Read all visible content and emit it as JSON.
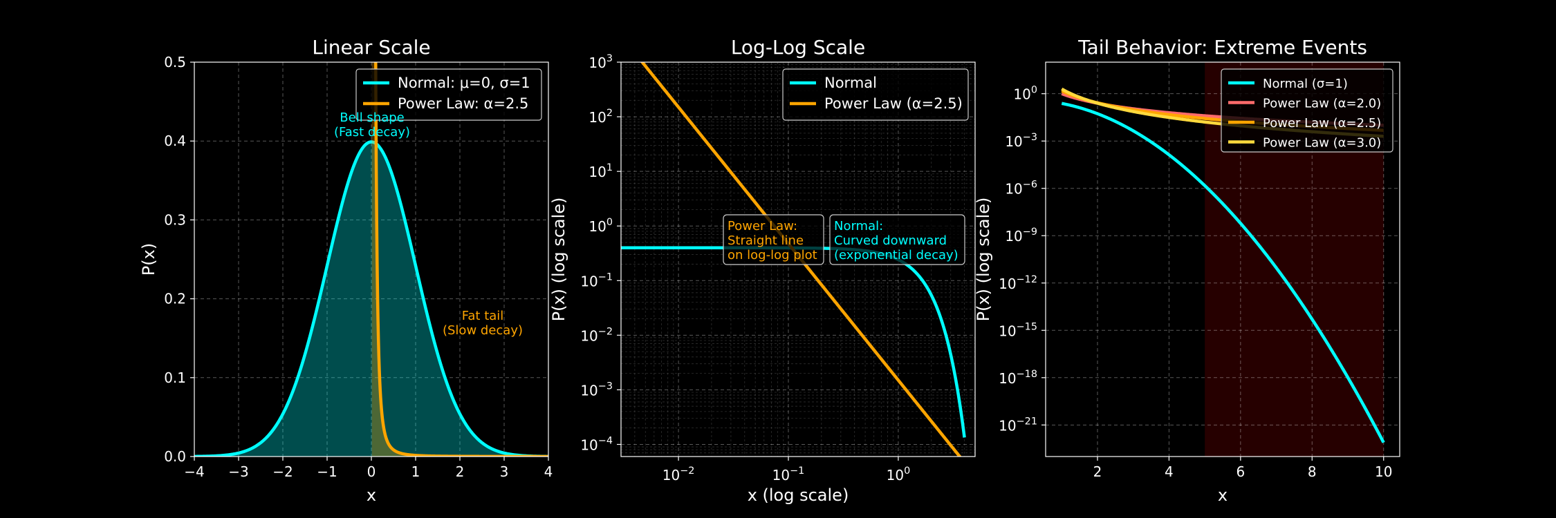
{
  "figure": {
    "background": "#000000"
  },
  "chart_data": [
    {
      "type": "line",
      "title": "Linear Scale",
      "xlabel": "x",
      "ylabel": "P(x)",
      "xscale": "linear",
      "yscale": "linear",
      "xlim": [
        -4,
        4
      ],
      "ylim": [
        0,
        0.5
      ],
      "xticks": [
        -4,
        -3,
        -2,
        -1,
        0,
        1,
        2,
        3,
        4
      ],
      "xtick_labels": [
        "−4",
        "−3",
        "−2",
        "−1",
        "0",
        "1",
        "2",
        "3",
        "4"
      ],
      "yticks": [
        0,
        0.1,
        0.2,
        0.3,
        0.4,
        0.5
      ],
      "ytick_labels": [
        "0.0",
        "0.1",
        "0.2",
        "0.3",
        "0.4",
        "0.5"
      ],
      "grid": true,
      "legend_position": "top-right",
      "series": [
        {
          "name": "Normal: μ=0, σ=1",
          "color": "#00ffff",
          "function": "normal_pdf",
          "params": {
            "mu": 0,
            "sigma": 1
          },
          "x_range": [
            -4,
            4
          ],
          "fill": true
        },
        {
          "name": "Power Law: α=2.5",
          "color": "#ffa500",
          "function": "power_law_pdf",
          "params": {
            "alpha": 2.5,
            "xmin": 0.01
          },
          "x_range": [
            0.01,
            4
          ],
          "fill": true
        }
      ],
      "annotations": [
        {
          "lines": [
            "Bell shape",
            "(Fast decay)"
          ],
          "color": "#00ffff",
          "x": 0,
          "y": 0.42
        },
        {
          "lines": [
            "Fat tail",
            "(Slow decay)"
          ],
          "color": "#ffa500",
          "x": 2.5,
          "y": 0.16
        }
      ]
    },
    {
      "type": "line",
      "title": "Log-Log Scale",
      "xlabel": "x (log scale)",
      "ylabel": "P(x) (log scale)",
      "xscale": "log",
      "yscale": "log",
      "xlim": [
        0.003,
        5
      ],
      "ylim": [
        6e-05,
        1000
      ],
      "xticks": [
        0.01,
        0.1,
        1
      ],
      "xtick_labels": [
        [
          "10",
          "−2"
        ],
        [
          "10",
          "−1"
        ],
        [
          "10",
          "0"
        ]
      ],
      "yticks": [
        0.0001,
        0.001,
        0.01,
        0.1,
        1,
        10,
        100,
        1000
      ],
      "ytick_labels": [
        [
          "10",
          "−4"
        ],
        [
          "10",
          "−3"
        ],
        [
          "10",
          "−2"
        ],
        [
          "10",
          "−1"
        ],
        [
          "10",
          "0"
        ],
        [
          "10",
          "1"
        ],
        [
          "10",
          "2"
        ],
        [
          "10",
          "3"
        ]
      ],
      "grid": true,
      "minor_grid": true,
      "legend_position": "top-right",
      "series": [
        {
          "name": "Normal",
          "color": "#00ffff",
          "function": "normal_pdf",
          "params": {
            "mu": 0,
            "sigma": 1
          },
          "x_range": [
            0.003,
            4
          ]
        },
        {
          "name": "Power Law (α=2.5)",
          "color": "#ffa500",
          "function": "power_law_pdf",
          "params": {
            "alpha": 2.5,
            "xmin": 0.01
          },
          "x_range": [
            0.003,
            4
          ]
        }
      ],
      "annotations": [
        {
          "lines": [
            "Power Law:",
            "Straight line",
            "on log-log plot"
          ],
          "color": "#ffa500",
          "boxed": true
        },
        {
          "lines": [
            "Normal:",
            "Curved downward",
            "(exponential decay)"
          ],
          "color": "#00ffff",
          "boxed": true
        }
      ]
    },
    {
      "type": "line",
      "title": "Tail Behavior: Extreme Events",
      "xlabel": "x",
      "ylabel": "P(x) (log scale)",
      "xscale": "linear",
      "yscale": "log",
      "xlim": [
        0.55,
        10.45
      ],
      "ylim": [
        1e-23,
        100.0
      ],
      "xticks": [
        2,
        4,
        6,
        8,
        10
      ],
      "xtick_labels": [
        "2",
        "4",
        "6",
        "8",
        "10"
      ],
      "yticks": [
        1e-21,
        1e-18,
        1e-15,
        1e-12,
        1e-09,
        1e-06,
        0.001,
        1
      ],
      "ytick_labels": [
        [
          "10",
          "−21"
        ],
        [
          "10",
          "−18"
        ],
        [
          "10",
          "−15"
        ],
        [
          "10",
          "−12"
        ],
        [
          "10",
          "−9"
        ],
        [
          "10",
          "−6"
        ],
        [
          "10",
          "−3"
        ],
        [
          "10",
          "0"
        ]
      ],
      "grid": true,
      "legend_position": "top-right",
      "highlight_region": {
        "x_range": [
          5,
          10
        ],
        "color": "#ff0000"
      },
      "series": [
        {
          "name": "Normal (σ=1)",
          "color": "#00ffff",
          "function": "normal_pdf",
          "params": {
            "mu": 0,
            "sigma": 1
          },
          "x_range": [
            1,
            10
          ]
        },
        {
          "name": "Power Law (α=2.0)",
          "color": "#ff6b6b",
          "function": "power_law_pdf",
          "params": {
            "alpha": 2.0,
            "xmin": 1
          },
          "x_range": [
            1,
            10
          ]
        },
        {
          "name": "Power Law (α=2.5)",
          "color": "#ffa500",
          "function": "power_law_pdf",
          "params": {
            "alpha": 2.5,
            "xmin": 1
          },
          "x_range": [
            1,
            10
          ]
        },
        {
          "name": "Power Law (α=3.0)",
          "color": "#ffd93d",
          "function": "power_law_pdf",
          "params": {
            "alpha": 3.0,
            "xmin": 1
          },
          "x_range": [
            1,
            10
          ]
        }
      ]
    }
  ]
}
